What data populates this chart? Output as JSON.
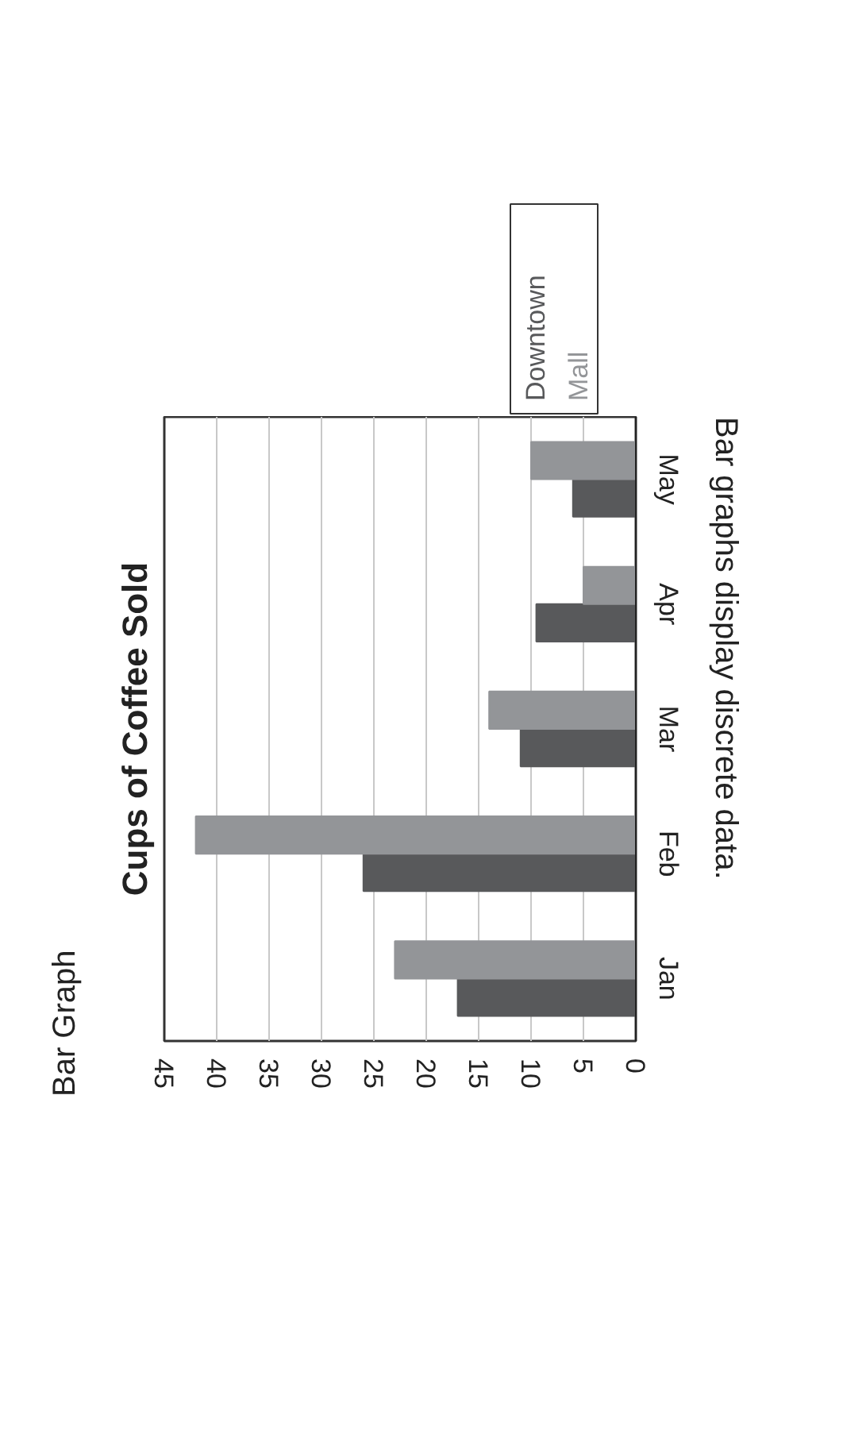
{
  "chart_data": {
    "type": "bar",
    "orientation": "horizontal",
    "title": "Cups of Coffee Sold",
    "annotations": [
      "Bar Graph",
      "Bar graphs display discrete data."
    ],
    "categories": [
      "May",
      "Apr",
      "Mar",
      "Feb",
      "Jan"
    ],
    "series": [
      {
        "name": "Downtown",
        "color": "#58595b",
        "values": [
          6,
          9.5,
          11,
          26,
          17
        ]
      },
      {
        "name": "Mall",
        "color": "#939598",
        "values": [
          10,
          5,
          14,
          42,
          23
        ]
      }
    ],
    "xlim": [
      45,
      0
    ],
    "xticks": [
      45,
      40,
      35,
      30,
      25,
      20,
      15,
      10,
      5,
      0
    ],
    "grid": "x",
    "legend": "top"
  }
}
